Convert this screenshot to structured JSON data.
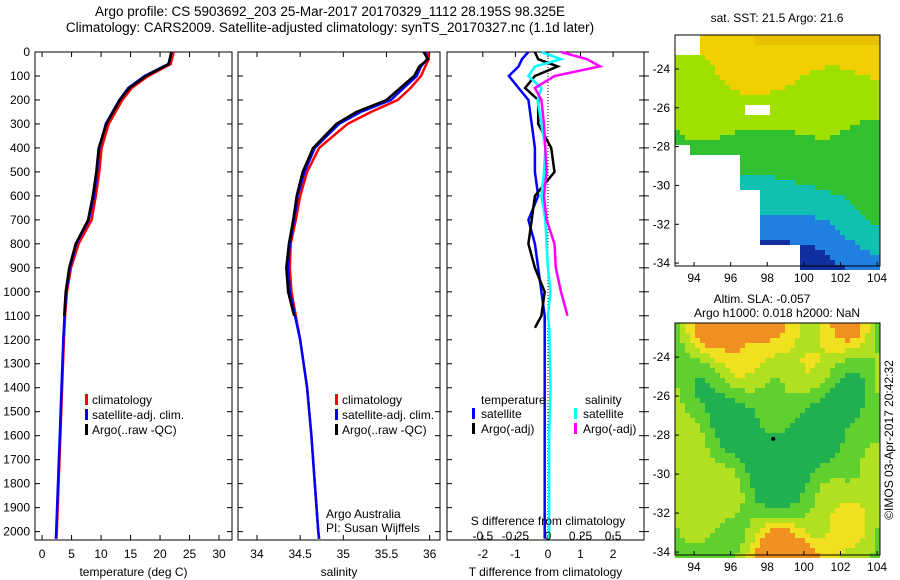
{
  "titles": {
    "line1": "Argo profile: CS 5903692_203 25-Mar-2017 20170329_1112 28.195S 98.325E",
    "line2": "Climatology: CARS2009. Satellite-adjusted climatology: synTS_20170327.nc (1.1d later)"
  },
  "chart_data": [
    {
      "type": "line",
      "id": "temperature",
      "xlabel": "temperature (deg C)",
      "ylabel": "depth",
      "xlim": [
        -1.2,
        32.2
      ],
      "ylim": [
        2035,
        0
      ],
      "xticks": [
        0,
        5,
        10,
        15,
        20,
        25,
        30
      ],
      "yticks": [
        0,
        100,
        200,
        300,
        400,
        500,
        600,
        700,
        800,
        900,
        1000,
        1100,
        1200,
        1300,
        1400,
        1500,
        1600,
        1700,
        1800,
        1900,
        2000
      ],
      "legend": [
        "climatology",
        "satellite-adj. clim.",
        "Argo(..raw -QC)"
      ],
      "depth": [
        0,
        50,
        100,
        150,
        200,
        300,
        400,
        500,
        600,
        700,
        800,
        900,
        1000,
        1100,
        1200,
        1400,
        1600,
        1800,
        2000,
        2030
      ],
      "series": [
        {
          "name": "climatology",
          "color": "#ff0000",
          "values": [
            22.3,
            21.8,
            18,
            15.2,
            13.6,
            11.3,
            10.1,
            9.7,
            9.1,
            8.4,
            6.2,
            4.9,
            4.2,
            3.9,
            3.7,
            3.4,
            3.1,
            2.8,
            2.5,
            2.45
          ]
        },
        {
          "name": "satellite-adj. clim.",
          "color": "#0000ff",
          "values": [
            22.0,
            21.4,
            17.4,
            14.6,
            13.1,
            10.8,
            9.7,
            9.3,
            8.8,
            7.9,
            5.8,
            4.7,
            4.1,
            3.8,
            3.6,
            3.3,
            3.0,
            2.7,
            2.4,
            2.35
          ]
        },
        {
          "name": "Argo(..raw -QC)",
          "color": "#000000",
          "values": [
            21.9,
            21.5,
            17.6,
            14.8,
            13.2,
            10.9,
            9.6,
            9.2,
            8.6,
            7.8,
            5.7,
            4.6,
            4.0,
            3.75,
            null,
            null,
            null,
            null,
            null,
            null
          ]
        }
      ]
    },
    {
      "type": "line",
      "id": "salinity",
      "xlabel": "salinity",
      "xlim": [
        33.78,
        36.12
      ],
      "ylim": [
        2035,
        0
      ],
      "xticks": [
        34,
        34.5,
        35,
        35.5,
        36
      ],
      "legend": [
        "climatology",
        "satellite-adj. clim.",
        "Argo(..raw -QC)"
      ],
      "annotation": [
        "Argo Australia",
        "PI: Susan Wijffels"
      ],
      "depth": [
        0,
        30,
        60,
        100,
        150,
        200,
        250,
        300,
        400,
        500,
        600,
        700,
        800,
        900,
        1000,
        1100,
        1200,
        1400,
        1600,
        1800,
        2000,
        2030
      ],
      "series": [
        {
          "name": "climatology",
          "color": "#ff0000",
          "values": [
            35.98,
            35.99,
            35.95,
            35.9,
            35.78,
            35.63,
            35.32,
            35.05,
            34.72,
            34.58,
            34.5,
            34.45,
            34.39,
            34.38,
            34.4,
            34.45,
            34.5,
            34.58,
            34.63,
            34.67,
            34.71,
            34.72
          ]
        },
        {
          "name": "satellite-adj. clim.",
          "color": "#0000ff",
          "values": [
            35.95,
            35.97,
            35.9,
            35.85,
            35.7,
            35.55,
            35.2,
            34.95,
            34.67,
            34.55,
            34.47,
            34.43,
            34.38,
            34.36,
            34.38,
            34.44,
            34.5,
            34.58,
            34.63,
            34.67,
            34.71,
            34.72
          ]
        },
        {
          "name": "Argo(..raw -QC)",
          "color": "#000000",
          "values": [
            35.93,
            35.98,
            35.88,
            35.82,
            35.66,
            35.5,
            35.15,
            34.92,
            34.65,
            34.53,
            34.46,
            34.42,
            34.37,
            34.34,
            34.36,
            34.43,
            null,
            null,
            null,
            null,
            null,
            null
          ]
        }
      ]
    },
    {
      "type": "line",
      "id": "differences",
      "xlabel": "T difference from climatology",
      "xlabel2": "S difference from climatology",
      "xlim": [
        -3.1,
        2.95
      ],
      "ylim": [
        2035,
        0
      ],
      "xticks": [
        -2,
        -1,
        0,
        1,
        2
      ],
      "xticks2": [
        -0.5,
        -0.25,
        0,
        0.25,
        0.5
      ],
      "legend_temperature": {
        "title": "temperature",
        "items": [
          "satellite",
          "Argo(-adj)"
        ]
      },
      "legend_salinity": {
        "title": "salinity",
        "items": [
          "satellite",
          "Argo(-adj)"
        ]
      },
      "depth": [
        0,
        30,
        60,
        100,
        150,
        200,
        300,
        400,
        500,
        600,
        700,
        800,
        900,
        1000,
        1100,
        1150,
        1400,
        1600,
        1800,
        2000,
        2030
      ],
      "series": [
        {
          "name": "temperature satellite",
          "color": "#0000ff",
          "values": [
            -0.6,
            -0.8,
            -0.9,
            -1.2,
            -0.9,
            -0.6,
            -0.5,
            -0.4,
            -0.4,
            -0.3,
            -0.6,
            -0.4,
            -0.3,
            -0.2,
            -0.1,
            -0.1,
            -0.1,
            -0.1,
            -0.1,
            -0.1,
            -0.1
          ]
        },
        {
          "name": "temperature Argo(-adj)",
          "color": "#000000",
          "values": [
            -0.4,
            -0.3,
            0.3,
            -0.4,
            -0.7,
            -0.3,
            -0.3,
            0.1,
            0.2,
            -0.4,
            -0.5,
            -0.6,
            -0.4,
            -0.1,
            -0.2,
            -0.4,
            null,
            null,
            null,
            null,
            null
          ]
        },
        {
          "name": "salinity satellite",
          "color": "#00ffff",
          "values": [
            -0.05,
            0.1,
            -0.1,
            -0.15,
            -0.05,
            -0.08,
            -0.05,
            -0.02,
            -0.03,
            -0.05,
            -0.02,
            -0.01,
            0,
            0.02,
            0,
            0.01,
            0.02,
            0.01,
            0.01,
            0.01,
            0.01
          ]
        },
        {
          "name": "salinity Argo(-adj)",
          "color": "#ff00ff",
          "values": [
            0.1,
            0.3,
            0.4,
            0.05,
            -0.1,
            -0.05,
            -0.03,
            -0.02,
            -0.01,
            -0.03,
            -0.01,
            0.05,
            0.06,
            0.1,
            0.15,
            null,
            null,
            null,
            null,
            null,
            null
          ]
        }
      ]
    }
  ],
  "maps": {
    "sst": {
      "title": "sat. SST: 21.5 Argo: 21.6",
      "xticks": [
        94,
        96,
        98,
        100,
        102,
        104
      ],
      "yticks": [
        -24,
        -26,
        -28,
        -30,
        -32,
        -34
      ]
    },
    "sla": {
      "title1": "Altim. SLA: -0.057",
      "title2": "Argo h1000: 0.018 h2000: NaN",
      "xticks": [
        94,
        96,
        98,
        100,
        102,
        104
      ],
      "yticks": [
        -24,
        -26,
        -28,
        -30,
        -32,
        -34
      ]
    }
  },
  "credit": "©IMOS 03-Apr-2017 20:42:32"
}
